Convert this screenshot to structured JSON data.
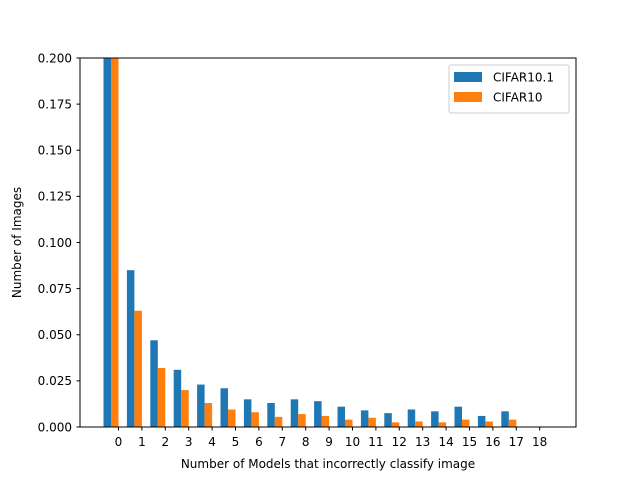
{
  "chart_data": {
    "type": "bar",
    "title": "",
    "xlabel": "Number of Models that incorrectly classify image",
    "ylabel": "Number of Images",
    "categories": [
      "0",
      "1",
      "2",
      "3",
      "4",
      "5",
      "6",
      "7",
      "8",
      "9",
      "10",
      "11",
      "12",
      "13",
      "14",
      "15",
      "16",
      "17",
      "18"
    ],
    "ylim": [
      0,
      0.2
    ],
    "yticks": [
      "0.000",
      "0.025",
      "0.050",
      "0.075",
      "0.100",
      "0.125",
      "0.150",
      "0.175",
      "0.200"
    ],
    "series": [
      {
        "name": "CIFAR10.1",
        "color": "#1f77b4",
        "values": [
          0.2,
          0.085,
          0.047,
          0.031,
          0.023,
          0.021,
          0.015,
          0.013,
          0.015,
          0.014,
          0.011,
          0.009,
          0.0075,
          0.0095,
          0.0085,
          0.011,
          0.006,
          0.0085,
          0.0
        ]
      },
      {
        "name": "CIFAR10",
        "color": "#ff7f0e",
        "values": [
          0.2,
          0.063,
          0.032,
          0.02,
          0.013,
          0.0095,
          0.008,
          0.0055,
          0.007,
          0.006,
          0.004,
          0.005,
          0.0025,
          0.003,
          0.0025,
          0.004,
          0.003,
          0.004,
          0.0
        ]
      }
    ],
    "legend_position": "top-right",
    "grid": false
  }
}
